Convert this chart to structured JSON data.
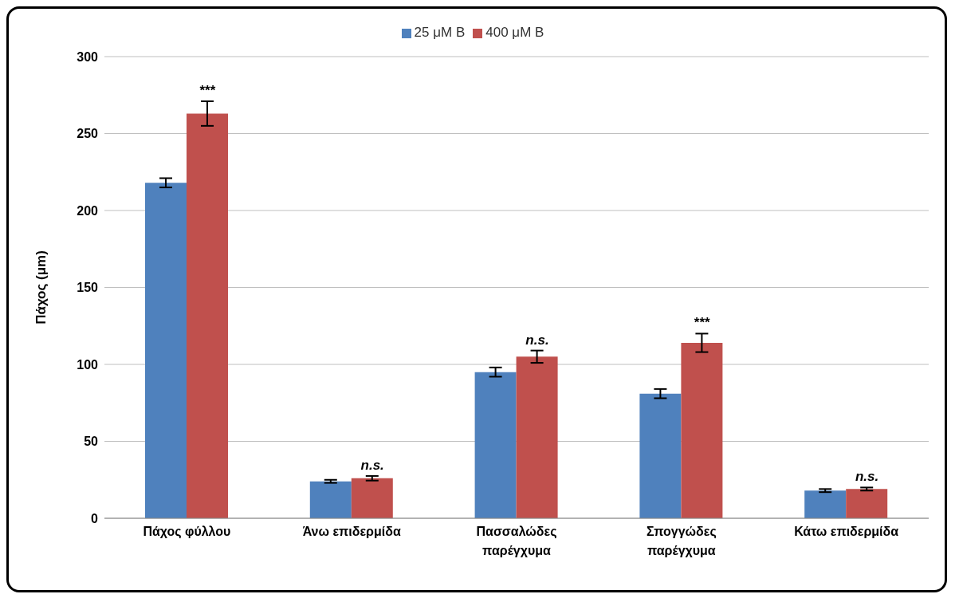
{
  "chart_data": {
    "type": "bar",
    "ylabel": "Πάχος (μm)",
    "categories": [
      "Πάχος φύλλου",
      "Άνω επιδερμίδα",
      "Πασσαλώδες παρέγχυμα",
      "Σπογγώδες παρέγχυμα",
      "Κάτω επιδερμίδα"
    ],
    "series": [
      {
        "name": "25 μM B",
        "color": "#4f81bd",
        "values": [
          218,
          24,
          95,
          81,
          18
        ],
        "errors": [
          3,
          1,
          3,
          3,
          1
        ]
      },
      {
        "name": "400 μM B",
        "color": "#c0504d",
        "values": [
          263,
          26,
          105,
          114,
          19
        ],
        "errors": [
          8,
          1.5,
          4,
          6,
          1
        ]
      }
    ],
    "ylim": [
      0,
      300
    ],
    "yticks": [
      0,
      50,
      100,
      150,
      200,
      250,
      300
    ],
    "grid": "y",
    "legend": "top",
    "annotations": [
      {
        "text": "***",
        "x": "Πάχος φύλλου",
        "y": 263
      },
      {
        "text": "n.s.",
        "x": "Άνω επιδερμίδα",
        "y": 26
      },
      {
        "text": "n.s.",
        "x": "Πασσαλώδες παρέγχυμα",
        "y": 105
      },
      {
        "text": "***",
        "x": "Σπογγώδες παρέγχυμα",
        "y": 114
      },
      {
        "text": "n.s.",
        "x": "Κάτω επιδερμίδα",
        "y": 19
      }
    ]
  }
}
